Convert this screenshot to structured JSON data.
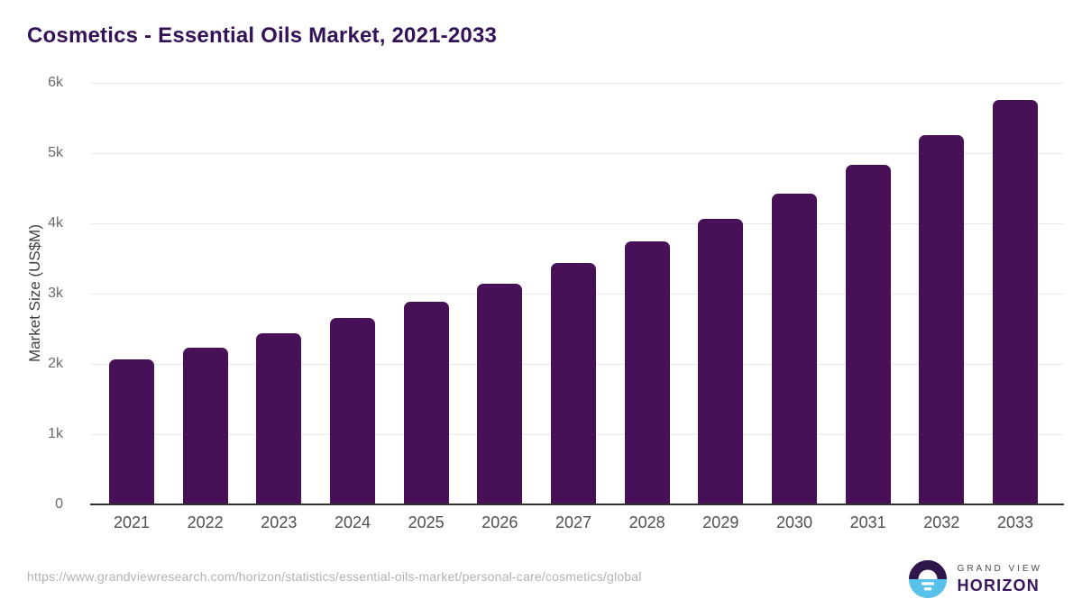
{
  "title": "Cosmetics - Essential Oils Market, 2021-2033",
  "chart_data": {
    "type": "bar",
    "title": "Cosmetics - Essential Oils Market, 2021-2033",
    "categories": [
      "2021",
      "2022",
      "2023",
      "2024",
      "2025",
      "2026",
      "2027",
      "2028",
      "2029",
      "2030",
      "2031",
      "2032",
      "2033"
    ],
    "values": [
      2070,
      2230,
      2430,
      2660,
      2890,
      3140,
      3430,
      3740,
      4060,
      4420,
      4830,
      5260,
      5760
    ],
    "xlabel": "",
    "ylabel": "Market Size (US$M)",
    "ylim": [
      0,
      6000
    ],
    "yticks": [
      {
        "label": "0",
        "value": 0
      },
      {
        "label": "1k",
        "value": 1000
      },
      {
        "label": "2k",
        "value": 2000
      },
      {
        "label": "3k",
        "value": 3000
      },
      {
        "label": "4k",
        "value": 4000
      },
      {
        "label": "5k",
        "value": 5000
      },
      {
        "label": "6k",
        "value": 6000
      }
    ],
    "grid": "horizontal",
    "legend_position": "none",
    "bar_color": "#481056"
  },
  "colors": {
    "title": "#351157",
    "bar": "#481056",
    "gridline": "#e9e9e9",
    "axis_line": "#2f2f2f",
    "tick_text": "#6a6a6a",
    "category_text": "#4f4f4f",
    "url_text": "#b2b2b2",
    "logo_blue": "#57c1e9",
    "logo_purple": "#2e164a"
  },
  "footer": {
    "source_url": "https://www.grandviewresearch.com/horizon/statistics/essential-oils-market/personal-care/cosmetics/global",
    "logo": {
      "line1": "GRAND VIEW",
      "line2": "HORIZON"
    }
  }
}
